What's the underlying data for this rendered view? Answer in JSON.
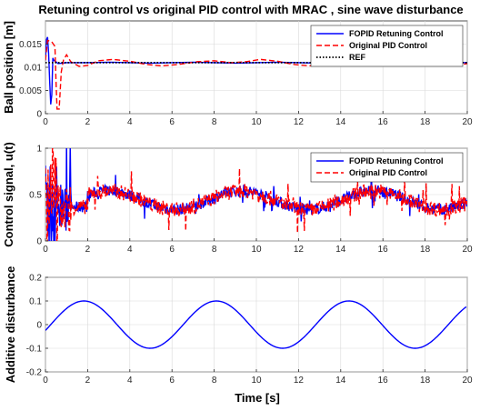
{
  "chart_data": [
    {
      "type": "line",
      "title": "Retuning control vs original PID control with MRAC , sine wave disturbance",
      "xlabel": "",
      "ylabel": "Ball position [m]",
      "xlim": [
        0,
        20
      ],
      "ylim": [
        0,
        0.02
      ],
      "xticks": [
        0,
        2,
        4,
        6,
        8,
        10,
        12,
        14,
        16,
        18,
        20
      ],
      "yticks": [
        0,
        0.005,
        0.01,
        0.015
      ],
      "ytick_labels": [
        "0",
        "0.005",
        "0.01",
        "0.015"
      ],
      "grid": true,
      "legend_position": "top-right",
      "series": [
        {
          "name": "FOPID Retuning Control",
          "color": "#0000ff",
          "style": "solid",
          "points": [
            [
              0,
              0.0115
            ],
            [
              0.05,
              0.016
            ],
            [
              0.1,
              0.0165
            ],
            [
              0.15,
              0.013
            ],
            [
              0.2,
              0.007
            ],
            [
              0.25,
              0.002
            ],
            [
              0.3,
              0.004
            ],
            [
              0.35,
              0.012
            ],
            [
              0.4,
              0.0115
            ],
            [
              0.5,
              0.0112
            ],
            [
              0.6,
              0.0108
            ],
            [
              0.8,
              0.0109
            ],
            [
              1,
              0.011
            ],
            [
              2,
              0.011
            ],
            [
              3,
              0.0111
            ],
            [
              4,
              0.011
            ],
            [
              5,
              0.0109
            ],
            [
              6,
              0.011
            ],
            [
              7,
              0.0111
            ],
            [
              8,
              0.011
            ],
            [
              9,
              0.0109
            ],
            [
              10,
              0.011
            ],
            [
              11,
              0.0111
            ],
            [
              12,
              0.011
            ],
            [
              13,
              0.0109
            ],
            [
              14,
              0.011
            ],
            [
              15,
              0.0111
            ],
            [
              16,
              0.011
            ],
            [
              17,
              0.0109
            ],
            [
              18,
              0.011
            ],
            [
              19,
              0.0111
            ],
            [
              20,
              0.011
            ]
          ]
        },
        {
          "name": "Original PID Control",
          "color": "#ff0000",
          "style": "dashed",
          "points": [
            [
              0,
              0.0115
            ],
            [
              0.1,
              0.0158
            ],
            [
              0.3,
              0.0155
            ],
            [
              0.45,
              0.0145
            ],
            [
              0.5,
              0.007
            ],
            [
              0.55,
              0.001
            ],
            [
              0.65,
              0.001
            ],
            [
              0.75,
              0.009
            ],
            [
              0.85,
              0.0115
            ],
            [
              1.0,
              0.0127
            ],
            [
              1.2,
              0.0112
            ],
            [
              1.6,
              0.0102
            ],
            [
              2,
              0.0104
            ],
            [
              2.5,
              0.0114
            ],
            [
              3.2,
              0.0117
            ],
            [
              4,
              0.0113
            ],
            [
              4.8,
              0.0106
            ],
            [
              5.5,
              0.0103
            ],
            [
              6.3,
              0.0106
            ],
            [
              7.2,
              0.0112
            ],
            [
              8,
              0.0114
            ],
            [
              8.8,
              0.011
            ],
            [
              9.5,
              0.0112
            ],
            [
              10.2,
              0.0117
            ],
            [
              11,
              0.0113
            ],
            [
              11.8,
              0.0106
            ],
            [
              12.5,
              0.0103
            ],
            [
              13.3,
              0.0106
            ],
            [
              14.2,
              0.0112
            ],
            [
              15,
              0.0114
            ],
            [
              16,
              0.0112
            ],
            [
              16.6,
              0.0117
            ],
            [
              17.4,
              0.0113
            ],
            [
              18.2,
              0.0106
            ],
            [
              19,
              0.0103
            ],
            [
              19.6,
              0.0105
            ],
            [
              20,
              0.0108
            ]
          ]
        },
        {
          "name": "REF",
          "color": "#000000",
          "style": "dotted",
          "points": [
            [
              0,
              0.011
            ],
            [
              20,
              0.011
            ]
          ]
        }
      ]
    },
    {
      "type": "line",
      "title": "",
      "xlabel": "",
      "ylabel": "Control signal, u(t)",
      "xlim": [
        0,
        20
      ],
      "ylim": [
        0,
        1
      ],
      "xticks": [
        0,
        2,
        4,
        6,
        8,
        10,
        12,
        14,
        16,
        18,
        20
      ],
      "yticks": [
        0,
        0.5,
        1
      ],
      "ytick_labels": [
        "0",
        "0.5",
        "1"
      ],
      "grid": true,
      "legend_position": "top-right",
      "noise_note_fopid_amplitude": 0.06,
      "noise_note_pid_amplitude": 0.08,
      "series": [
        {
          "name": "FOPID Retuning Control",
          "color": "#0000ff",
          "style": "solid",
          "baseline": {
            "offset": 0.44,
            "amplitude": 0.1,
            "period": 6.3,
            "phase_time": 3.0
          }
        },
        {
          "name": "Original PID Control",
          "color": "#ff0000",
          "style": "dashed",
          "baseline": {
            "offset": 0.44,
            "amplitude": 0.1,
            "period": 6.3,
            "phase_time": 3.0
          }
        }
      ]
    },
    {
      "type": "line",
      "title": "",
      "xlabel": "Time [s]",
      "ylabel": "Additive disturbance",
      "xlim": [
        0,
        20
      ],
      "ylim": [
        -0.2,
        0.2
      ],
      "xticks": [
        0,
        2,
        4,
        6,
        8,
        10,
        12,
        14,
        16,
        18,
        20
      ],
      "yticks": [
        -0.2,
        -0.1,
        0,
        0.1,
        0.2
      ],
      "ytick_labels": [
        "-0.2",
        "-0.1",
        "0",
        "0.1",
        "0.2"
      ],
      "grid": true,
      "series": [
        {
          "name": "",
          "color": "#0000ff",
          "style": "solid",
          "function": {
            "amplitude": 0.1,
            "omega": 1.0,
            "phase": -0.25
          }
        }
      ]
    }
  ]
}
